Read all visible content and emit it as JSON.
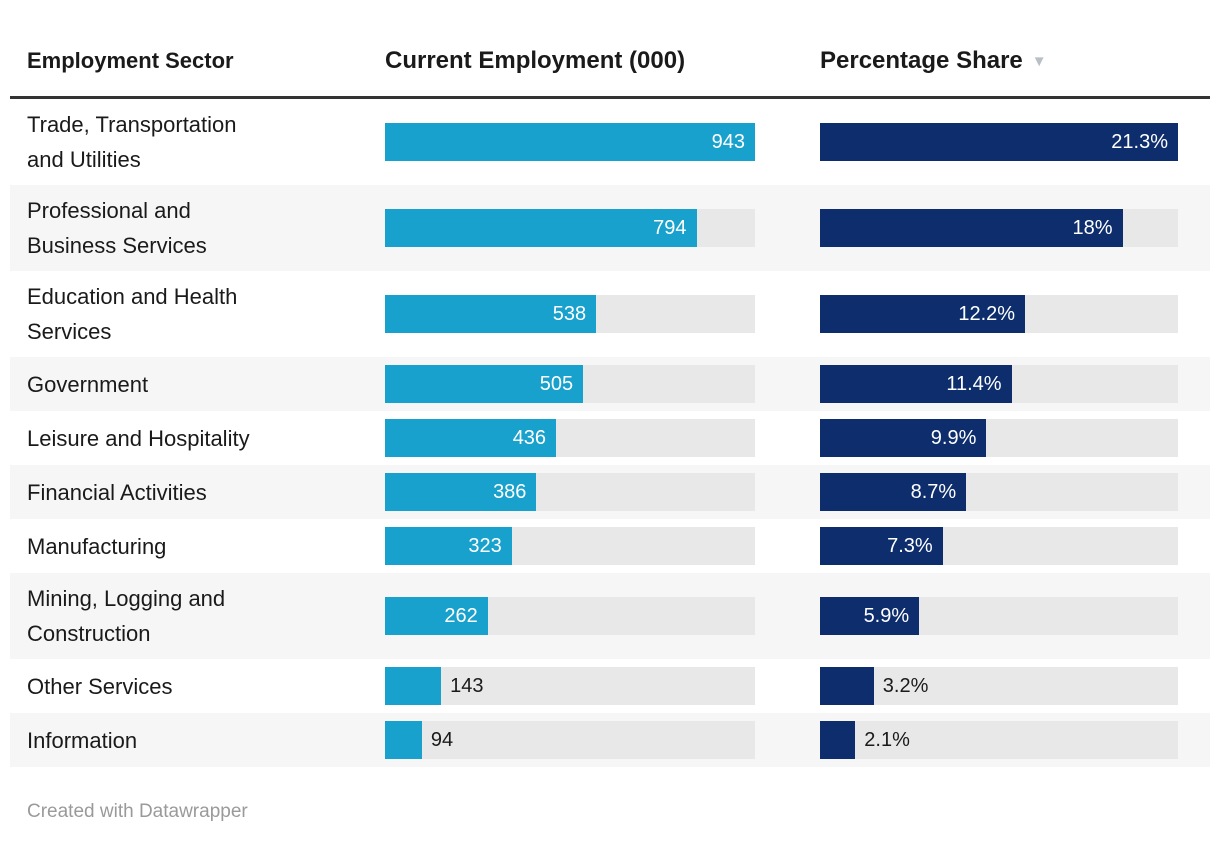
{
  "table": {
    "columns": [
      "Employment Sector",
      "Current Employment (000)",
      "Percentage Share"
    ],
    "sort": {
      "column": "Percentage Share",
      "direction": "descending",
      "icon": "▼"
    }
  },
  "colors": {
    "employment_bar": "#18a1cd",
    "share_bar": "#0d2d6d",
    "bar_track": "#e8e8e8",
    "row_stripe": "#f6f6f6",
    "header_rule": "#333333"
  },
  "chart_data": {
    "type": "table",
    "title": "",
    "columns": [
      "Employment Sector",
      "Current Employment (000)",
      "Percentage Share"
    ],
    "bar_scale": {
      "employment_max": 943,
      "share_max": 21.3
    },
    "rows": [
      {
        "sector": "Trade, Transportation\nand Utilities",
        "employment": 943,
        "employment_label": "943",
        "share": 21.3,
        "share_label": "21.3%"
      },
      {
        "sector": "Professional and\nBusiness Services",
        "employment": 794,
        "employment_label": "794",
        "share": 18,
        "share_label": "18%"
      },
      {
        "sector": "Education and Health\nServices",
        "employment": 538,
        "employment_label": "538",
        "share": 12.2,
        "share_label": "12.2%"
      },
      {
        "sector": "Government",
        "employment": 505,
        "employment_label": "505",
        "share": 11.4,
        "share_label": "11.4%"
      },
      {
        "sector": "Leisure and Hospitality",
        "employment": 436,
        "employment_label": "436",
        "share": 9.9,
        "share_label": "9.9%"
      },
      {
        "sector": "Financial Activities",
        "employment": 386,
        "employment_label": "386",
        "share": 8.7,
        "share_label": "8.7%"
      },
      {
        "sector": "Manufacturing",
        "employment": 323,
        "employment_label": "323",
        "share": 7.3,
        "share_label": "7.3%"
      },
      {
        "sector": "Mining, Logging and\nConstruction",
        "employment": 262,
        "employment_label": "262",
        "share": 5.9,
        "share_label": "5.9%"
      },
      {
        "sector": "Other Services",
        "employment": 143,
        "employment_label": "143",
        "share": 3.2,
        "share_label": "3.2%"
      },
      {
        "sector": "Information",
        "employment": 94,
        "employment_label": "94",
        "share": 2.1,
        "share_label": "2.1%"
      }
    ]
  },
  "footer": {
    "attribution": "Created with Datawrapper"
  }
}
